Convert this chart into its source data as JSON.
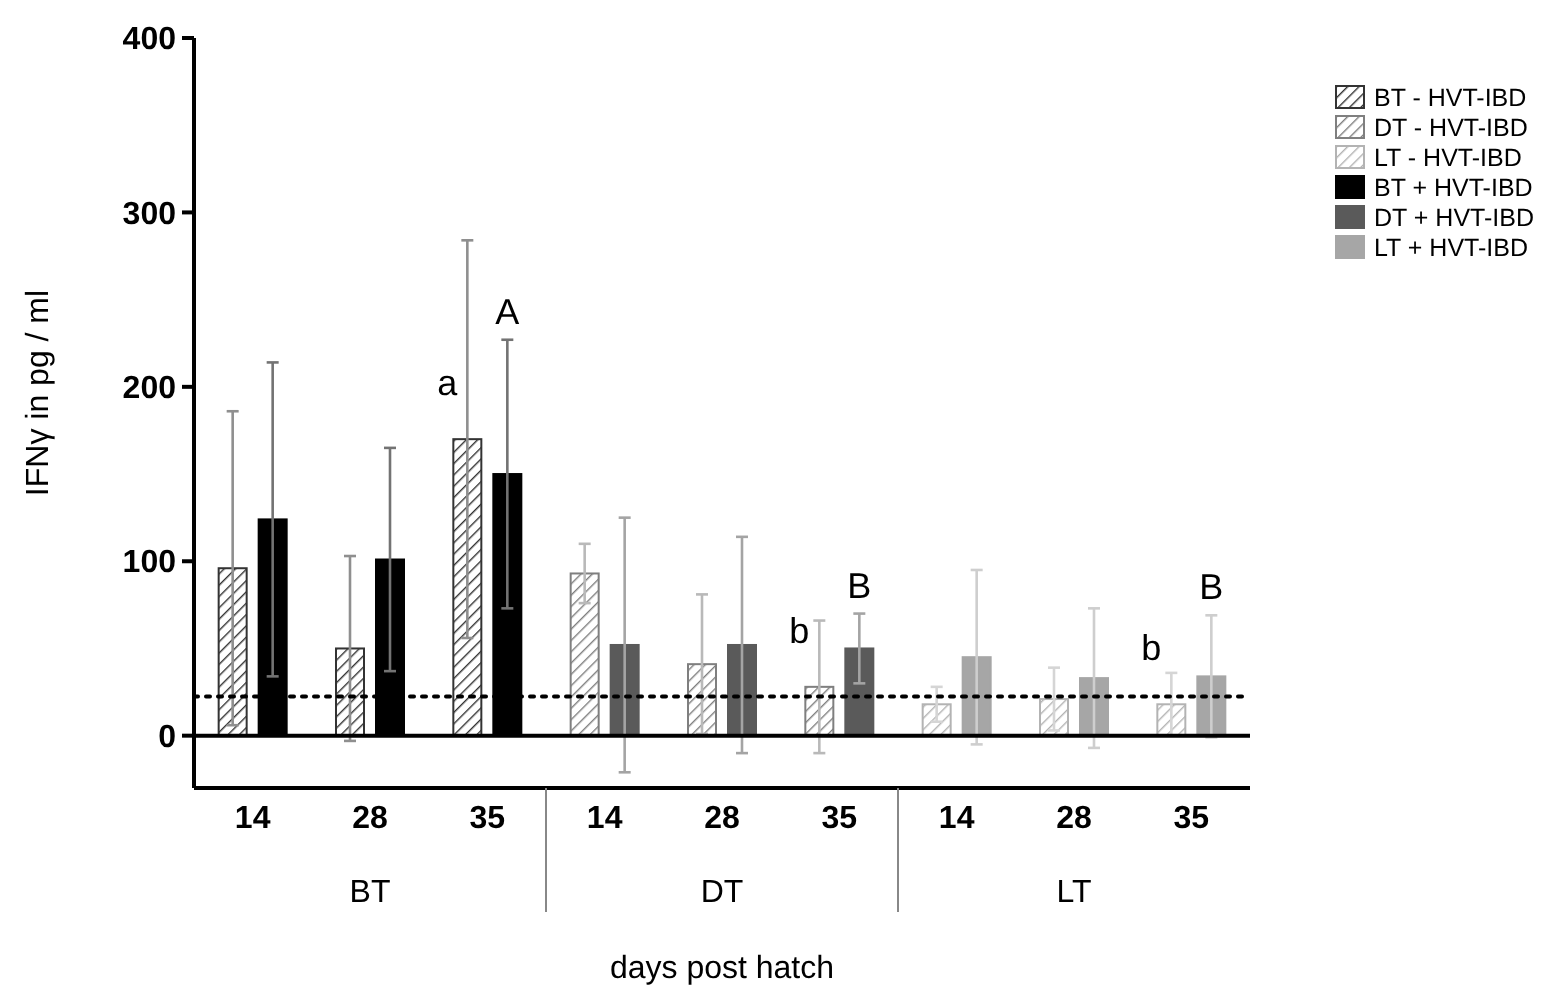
{
  "chart_data": {
    "type": "bar",
    "xlabel": "days post hatch",
    "ylabel": "IFNγ in pg / ml",
    "categories": [
      "14",
      "28",
      "35",
      "14",
      "28",
      "35",
      "14",
      "28",
      "35"
    ],
    "series": [
      {
        "name": "BT - HVT-IBD",
        "color": "#333333",
        "values": [
          96,
          50,
          170,
          null,
          null,
          null,
          null,
          null,
          null
        ],
        "errors": [
          90,
          53,
          114,
          null,
          null,
          null,
          null,
          null,
          null
        ]
      },
      {
        "name": "DT - HVT-IBD",
        "color": "#7f7f7f",
        "values": [
          null,
          null,
          null,
          93,
          41,
          28,
          null,
          null,
          null
        ],
        "errors": [
          null,
          null,
          null,
          17,
          40,
          38,
          null,
          null,
          null
        ]
      },
      {
        "name": "LT - HVT-IBD",
        "color": "#b3b3b3",
        "values": [
          null,
          null,
          null,
          null,
          null,
          null,
          18,
          21,
          18
        ],
        "errors": [
          null,
          null,
          null,
          null,
          null,
          null,
          10,
          18,
          18
        ]
      },
      {
        "name": "BT + HVT-IBD",
        "color": "#000000",
        "values": [
          124,
          101,
          150,
          null,
          null,
          null,
          null,
          null,
          null
        ],
        "errors": [
          90,
          64,
          77,
          null,
          null,
          null,
          null,
          null,
          null
        ]
      },
      {
        "name": "DT + HVT-IBD",
        "color": "#5a5a5a",
        "values": [
          null,
          null,
          null,
          52,
          52,
          50,
          null,
          null,
          null
        ],
        "errors": [
          null,
          null,
          null,
          73,
          62,
          20,
          null,
          null,
          null
        ]
      },
      {
        "name": "LT + HVT-IBD",
        "color": "#a6a6a6",
        "values": [
          null,
          null,
          null,
          null,
          null,
          null,
          45,
          33,
          34
        ],
        "errors": [
          null,
          null,
          null,
          null,
          null,
          null,
          50,
          40,
          35
        ]
      }
    ],
    "ylim": [
      -30,
      400
    ],
    "yticks": [
      0,
      100,
      200,
      300,
      400
    ],
    "ref_lines": [
      {
        "axis": "y",
        "value": 22.5,
        "line_style": "dotted",
        "color": "#000000"
      }
    ],
    "annotations": [
      "BT",
      "DT",
      "LT",
      "a",
      "A",
      "b",
      "B",
      "b",
      "B"
    ],
    "legend": "top right"
  }
}
